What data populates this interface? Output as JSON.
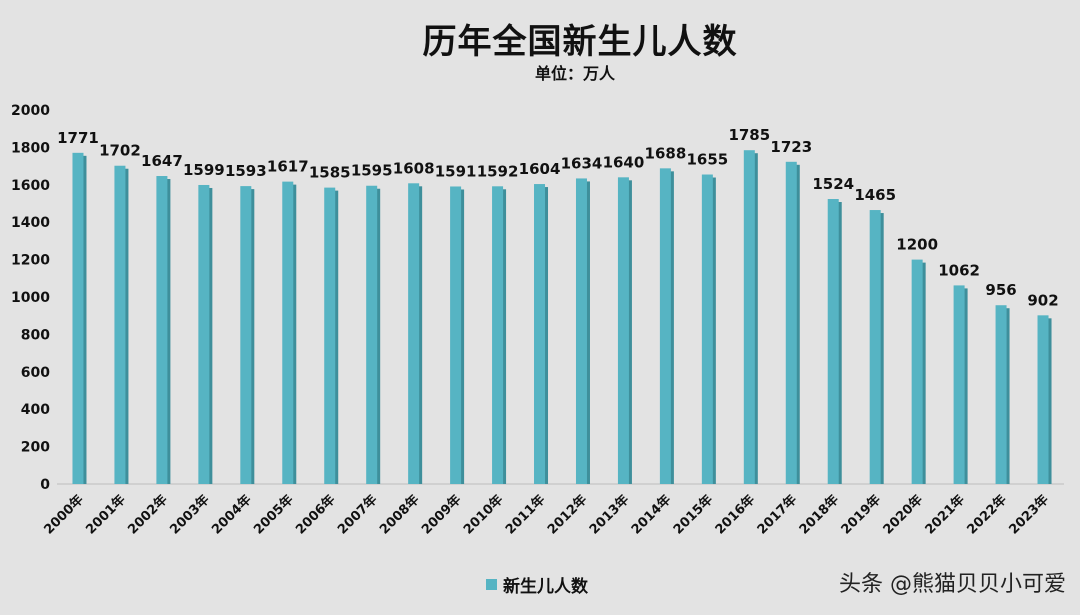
{
  "chart_data": {
    "type": "bar",
    "title": "历年全国新生儿人数",
    "subtitle": "单位：万人",
    "categories": [
      "2000年",
      "2001年",
      "2002年",
      "2003年",
      "2004年",
      "2005年",
      "2006年",
      "2007年",
      "2008年",
      "2009年",
      "2010年",
      "2011年",
      "2012年",
      "2013年",
      "2014年",
      "2015年",
      "2016年",
      "2017年",
      "2018年",
      "2019年",
      "2020年",
      "2021年",
      "2022年",
      "2023年"
    ],
    "series": [
      {
        "name": "新生儿人数",
        "values": [
          1771,
          1702,
          1647,
          1599,
          1593,
          1617,
          1585,
          1595,
          1608,
          1591,
          1592,
          1604,
          1634,
          1640,
          1688,
          1655,
          1785,
          1723,
          1524,
          1465,
          1200,
          1062,
          956,
          902
        ]
      }
    ],
    "ylim": [
      0,
      2000
    ],
    "yticks": [
      0,
      200,
      400,
      600,
      800,
      1000,
      1200,
      1400,
      1600,
      1800,
      2000
    ],
    "grid": false,
    "legend_position": "bottom",
    "bar_color": "#56b4c3",
    "bar_shadow_color": "#3e8f9b",
    "background_color": "#e3e3e3"
  },
  "watermark": "头条 @熊猫贝贝小可爱"
}
